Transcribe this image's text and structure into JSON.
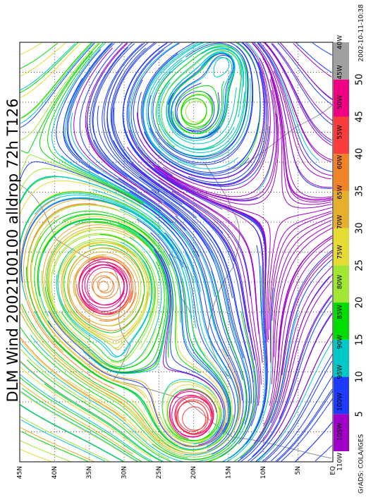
{
  "title": "DLM Wind 2002100100 alldrop 72h T126",
  "lat_labels": [
    "45N",
    "40N",
    "35N",
    "30N",
    "25N",
    "20N",
    "15N",
    "10N",
    "5N",
    "EQ"
  ],
  "lon_labels": [
    "40W",
    "45W",
    "50W",
    "55W",
    "60W",
    "65W",
    "70W",
    "75W",
    "80W",
    "85W",
    "90W",
    "95W",
    "100W",
    "105W",
    "110W"
  ],
  "colorbar": {
    "labels": [
      5,
      10,
      15,
      20,
      25,
      30,
      35,
      40,
      45,
      50
    ],
    "colors": [
      "#a000c8",
      "#1e3cff",
      "#00c8c8",
      "#00dc00",
      "#a0e632",
      "#e6dc32",
      "#e6af2d",
      "#f08228",
      "#fa3c3c",
      "#f00082",
      "#a0a0a0"
    ]
  },
  "footer": "GrADS: COLA/IGES",
  "timestamp": "2002-10-11-10:38"
}
